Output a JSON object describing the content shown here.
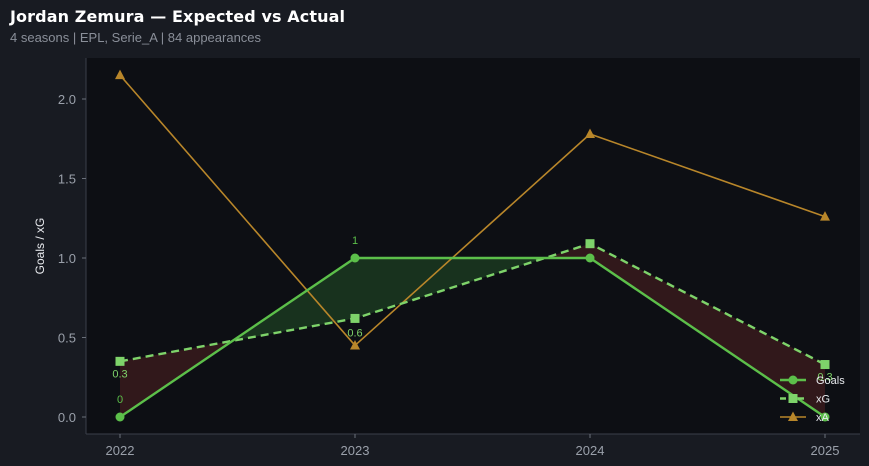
{
  "header": {
    "title": "Jordan Zemura — Expected vs Actual",
    "subtitle": "4 seasons | EPL, Serie_A | 84 appearances"
  },
  "colors": {
    "background": "#181b22",
    "plot_background": "#0d0f14",
    "goals": "#5cbf4a",
    "xg": "#7ed36a",
    "xa": "#b8862a",
    "over_fill": "#1f4a24",
    "under_fill": "#4a1e20"
  },
  "chart_data": {
    "type": "line",
    "x": [
      "2022",
      "2023",
      "2024",
      "2025"
    ],
    "ylabel": "Goals / xG",
    "xlabel": "",
    "ylim": [
      -0.1,
      2.25
    ],
    "yticks": [
      "0.0",
      "0.5",
      "1.0",
      "1.5",
      "2.0"
    ],
    "grid": false,
    "legend_position": "bottom-right",
    "series": [
      {
        "name": "Goals",
        "values": [
          0,
          1,
          1,
          0
        ],
        "marker": "circle",
        "style": "solid",
        "color": "#5cbf4a",
        "labels": [
          "0",
          "1",
          "",
          ""
        ]
      },
      {
        "name": "xG",
        "values": [
          0.35,
          0.62,
          1.09,
          0.33
        ],
        "marker": "square",
        "style": "dashed",
        "color": "#7ed36a",
        "labels": [
          "0.3",
          "0.6",
          "",
          "0.3"
        ]
      },
      {
        "name": "xA",
        "values": [
          2.15,
          0.45,
          1.78,
          1.26
        ],
        "marker": "triangle",
        "style": "solid",
        "color": "#b8862a",
        "labels": [
          "",
          "",
          "",
          ""
        ]
      }
    ]
  }
}
